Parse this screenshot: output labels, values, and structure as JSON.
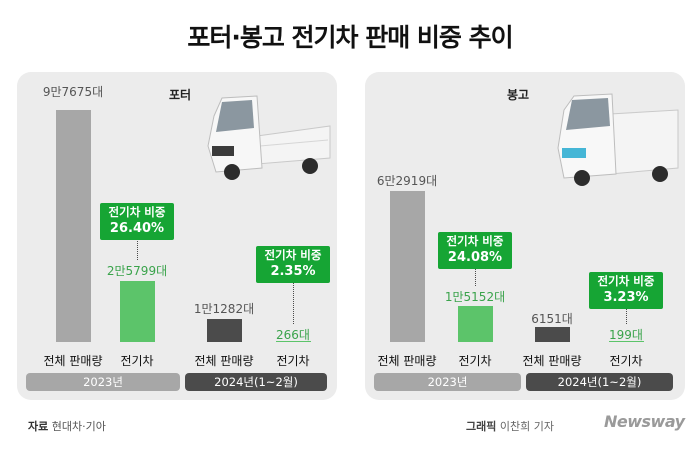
{
  "title": "포터·봉고 전기차 판매 비중 추이",
  "chart_data": [
    {
      "type": "bar",
      "title": "포터",
      "groups": [
        {
          "label": "2023년",
          "bars": [
            {
              "category": "전체 판매량",
              "value": 97675,
              "value_label": "9만7675대"
            },
            {
              "category": "전기차",
              "value": 25799,
              "value_label": "2만5799대"
            }
          ],
          "share_title": "전기차 비중",
          "share_value": "26.40%"
        },
        {
          "label": "2024년(1~2월)",
          "bars": [
            {
              "category": "전체 판매량",
              "value": 11282,
              "value_label": "1만1282대"
            },
            {
              "category": "전기차",
              "value": 266,
              "value_label": "266대"
            }
          ],
          "share_title": "전기차 비중",
          "share_value": "2.35%"
        }
      ]
    },
    {
      "type": "bar",
      "title": "봉고",
      "groups": [
        {
          "label": "2023년",
          "bars": [
            {
              "category": "전체 판매량",
              "value": 62919,
              "value_label": "6만2919대"
            },
            {
              "category": "전기차",
              "value": 15152,
              "value_label": "1만5152대"
            }
          ],
          "share_title": "전기차 비중",
          "share_value": "24.08%"
        },
        {
          "label": "2024년(1~2월)",
          "bars": [
            {
              "category": "전체 판매량",
              "value": 6151,
              "value_label": "6151대"
            },
            {
              "category": "전기차",
              "value": 199,
              "value_label": "199대"
            }
          ],
          "share_title": "전기차 비중",
          "share_value": "3.23%"
        }
      ]
    }
  ],
  "footer": {
    "source_label": "자료",
    "source_text": "현대차·기아",
    "credit_label": "그래픽",
    "credit_text": "이찬희 기자",
    "brand": "Newsway"
  },
  "colors": {
    "total_2023": "#a7a7a7",
    "total_2024": "#4b4b4b",
    "ev_2023": "#5cc46a",
    "ev_2024": "#85d28f",
    "share_box": "#16a534"
  }
}
